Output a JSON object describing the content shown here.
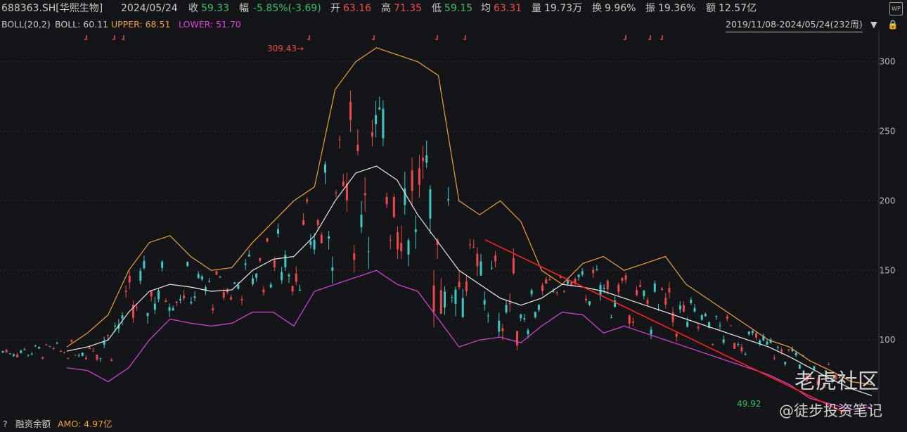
{
  "header": {
    "symbol": "688363.SH[华熙生物]",
    "date": "2024/05/24",
    "close_label": "收",
    "close_value": "59.33",
    "change_label": "幅",
    "change_value": "-5.85%(-3.69)",
    "open_label": "开",
    "open_value": "63.16",
    "high_label": "高",
    "high_value": "71.35",
    "low_label": "低",
    "low_value": "59.15",
    "avg_label": "均",
    "avg_value": "63.31",
    "volume_label": "量",
    "volume_value": "19.73万",
    "turnover_label": "换",
    "turnover_value": "9.96%",
    "amplitude_label": "振",
    "amplitude_value": "19.36%",
    "amount_label": "额",
    "amount_value": "12.57亿",
    "wp_icon": "WP"
  },
  "indicator": {
    "name": "BOLL(20,2)",
    "boll_label": "BOLL: 60.11",
    "upper_label": "UPPER: 68.51",
    "lower_label": "LOWER: 51.70",
    "range": "2019/11/08-2024/05/24(232周)"
  },
  "footer": {
    "question": "?",
    "margin_label": "融资余额",
    "amo_label": "AMO: 4.97亿"
  },
  "watermark": {
    "brand": "老虎社区",
    "handle": "@徒步投资笔记"
  },
  "colors": {
    "background": "#141519",
    "up": "#f04848",
    "down": "#2fc06a",
    "candle_down": "#3ec9c9",
    "boll_mid": "#e8e8e8",
    "boll_upper": "#f0a030",
    "boll_lower": "#e040e0",
    "trend_line": "#ff2020"
  },
  "chart_data": {
    "type": "line",
    "title": "688363.SH[华熙生物]",
    "x_range": [
      "2019/11/08",
      "2024/05/24"
    ],
    "ylim": [
      48,
      315
    ],
    "y_ticks": [
      100,
      150,
      200,
      250,
      300
    ],
    "grid": true,
    "annotations": [
      {
        "text": "309.43",
        "kind": "high"
      },
      {
        "text": "49.92",
        "kind": "low"
      }
    ],
    "series": [
      {
        "name": "UPPER",
        "values": [
          95,
          105,
          118,
          150,
          170,
          175,
          160,
          150,
          152,
          170,
          185,
          200,
          210,
          280,
          300,
          310,
          305,
          300,
          290,
          200,
          190,
          200,
          185,
          150,
          140,
          155,
          160,
          150,
          155,
          160,
          140,
          130,
          120,
          110,
          100,
          95,
          85,
          78,
          70,
          68
        ]
      },
      {
        "name": "BOLL",
        "values": [
          92,
          95,
          100,
          120,
          135,
          140,
          138,
          135,
          136,
          150,
          158,
          160,
          175,
          200,
          220,
          225,
          215,
          190,
          170,
          150,
          140,
          130,
          125,
          130,
          140,
          138,
          135,
          130,
          125,
          120,
          115,
          110,
          105,
          100,
          95,
          88,
          80,
          72,
          65,
          60
        ]
      },
      {
        "name": "LOWER",
        "values": [
          80,
          78,
          70,
          80,
          100,
          115,
          112,
          110,
          112,
          120,
          120,
          110,
          135,
          140,
          145,
          150,
          140,
          135,
          115,
          95,
          100,
          102,
          98,
          110,
          120,
          118,
          105,
          110,
          105,
          100,
          95,
          90,
          85,
          80,
          75,
          68,
          58,
          54,
          50,
          52
        ]
      }
    ]
  }
}
